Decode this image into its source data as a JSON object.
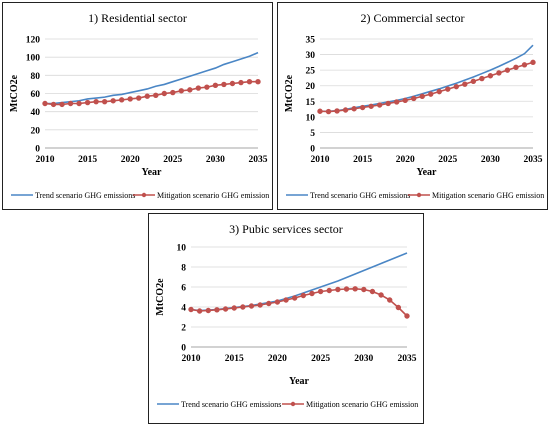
{
  "chart_data": [
    {
      "type": "line",
      "title": "1) Residential sector",
      "xlabel": "Year",
      "ylabel": "MtCO2e",
      "xlim": [
        2010,
        2035
      ],
      "ylim": [
        0,
        120
      ],
      "xticks": [
        2010,
        2015,
        2020,
        2025,
        2030,
        2035
      ],
      "yticks": [
        0,
        20,
        40,
        60,
        80,
        100,
        120
      ],
      "legend": "bottom",
      "x": [
        2010,
        2011,
        2012,
        2013,
        2014,
        2015,
        2016,
        2017,
        2018,
        2019,
        2020,
        2021,
        2022,
        2023,
        2024,
        2025,
        2026,
        2027,
        2028,
        2029,
        2030,
        2031,
        2032,
        2033,
        2034,
        2035
      ],
      "series": [
        {
          "name": "Trend scenario GHG emissions",
          "color": "#4a86c5",
          "marker": "none",
          "values": [
            49,
            49,
            50,
            51,
            52,
            54,
            55,
            56,
            58,
            59,
            61,
            63,
            65,
            68,
            70,
            73,
            76,
            79,
            82,
            85,
            88,
            92,
            95,
            98,
            101,
            105
          ]
        },
        {
          "name": "Mitigation scenario GHG emission",
          "color": "#c0504d",
          "marker": "circle",
          "values": [
            49,
            48,
            48,
            49,
            49,
            50,
            51,
            51,
            52,
            53,
            54,
            55,
            57,
            58,
            60,
            61,
            63,
            64,
            66,
            67,
            69,
            70,
            71,
            72,
            73,
            73
          ]
        }
      ]
    },
    {
      "type": "line",
      "title": "2) Commercial sector",
      "xlabel": "Year",
      "ylabel": "MtCO2e",
      "xlim": [
        2010,
        2035
      ],
      "ylim": [
        0,
        35
      ],
      "xticks": [
        2010,
        2015,
        2020,
        2025,
        2030,
        2035
      ],
      "yticks": [
        0,
        5,
        10,
        15,
        20,
        25,
        30,
        35
      ],
      "legend": "bottom",
      "x": [
        2010,
        2011,
        2012,
        2013,
        2014,
        2015,
        2016,
        2017,
        2018,
        2019,
        2020,
        2021,
        2022,
        2023,
        2024,
        2025,
        2026,
        2027,
        2028,
        2029,
        2030,
        2031,
        2032,
        2033,
        2034,
        2035
      ],
      "series": [
        {
          "name": "Trend scenario GHG emissions",
          "color": "#4a86c5",
          "marker": "none",
          "values": [
            11.8,
            11.8,
            12.0,
            12.4,
            12.9,
            13.4,
            13.8,
            14.3,
            14.8,
            15.3,
            15.9,
            16.6,
            17.4,
            18.2,
            19.0,
            19.9,
            20.8,
            21.8,
            22.8,
            23.9,
            25.0,
            26.2,
            27.5,
            28.8,
            30.3,
            33.0
          ]
        },
        {
          "name": "Mitigation scenario GHG emission",
          "color": "#c0504d",
          "marker": "circle",
          "values": [
            11.8,
            11.7,
            11.9,
            12.2,
            12.6,
            13.0,
            13.4,
            13.8,
            14.3,
            14.8,
            15.3,
            15.9,
            16.6,
            17.3,
            18.1,
            18.9,
            19.7,
            20.5,
            21.4,
            22.3,
            23.2,
            24.1,
            25.0,
            25.9,
            26.7,
            27.5
          ]
        }
      ]
    },
    {
      "type": "line",
      "title": "3) Pubic services sector",
      "xlabel": "Year",
      "ylabel": "MtCO2e",
      "xlim": [
        2010,
        2035
      ],
      "ylim": [
        0,
        10
      ],
      "xticks": [
        2010,
        2015,
        2020,
        2025,
        2030,
        2035
      ],
      "yticks": [
        0,
        2,
        4,
        6,
        8,
        10
      ],
      "legend": "bottom",
      "x": [
        2010,
        2011,
        2012,
        2013,
        2014,
        2015,
        2016,
        2017,
        2018,
        2019,
        2020,
        2021,
        2022,
        2023,
        2024,
        2025,
        2026,
        2027,
        2028,
        2029,
        2030,
        2031,
        2032,
        2033,
        2034,
        2035
      ],
      "series": [
        {
          "name": "Trend scenario GHG emissions",
          "color": "#4a86c5",
          "marker": "none",
          "values": [
            3.75,
            3.65,
            3.7,
            3.75,
            3.85,
            3.95,
            4.05,
            4.15,
            4.3,
            4.45,
            4.6,
            4.85,
            5.1,
            5.4,
            5.7,
            6.0,
            6.3,
            6.6,
            6.95,
            7.3,
            7.65,
            8.0,
            8.35,
            8.7,
            9.05,
            9.4
          ]
        },
        {
          "name": "Mitigation scenario GHG emission",
          "color": "#c0504d",
          "marker": "circle",
          "values": [
            3.75,
            3.6,
            3.65,
            3.72,
            3.8,
            3.9,
            4.0,
            4.1,
            4.2,
            4.35,
            4.5,
            4.7,
            4.9,
            5.15,
            5.35,
            5.55,
            5.65,
            5.75,
            5.8,
            5.82,
            5.75,
            5.55,
            5.2,
            4.7,
            3.95,
            3.1
          ]
        }
      ]
    }
  ]
}
